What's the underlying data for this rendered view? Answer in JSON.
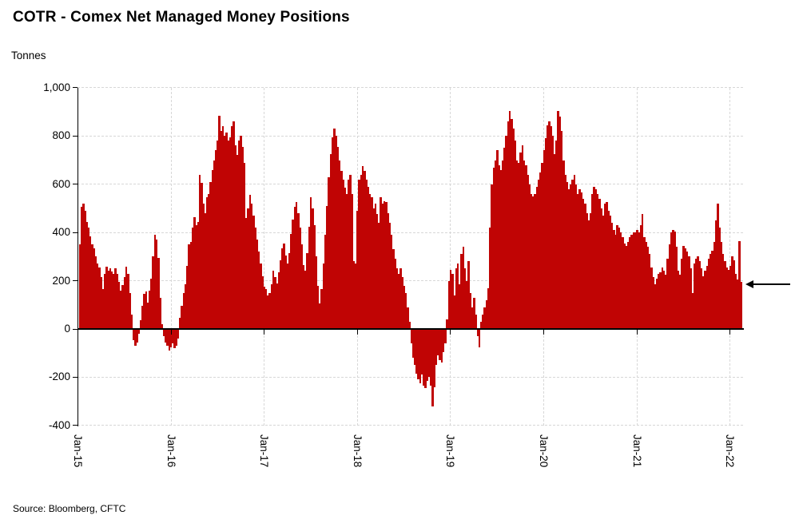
{
  "title": "COTR - Comex Net Managed Money Positions",
  "source": "Source:  Bloomberg,  CFTC",
  "y_axis": {
    "unit_label": "Tonnes",
    "tick_labels": [
      "1,000",
      "800",
      "600",
      "400",
      "200",
      "0",
      "-200",
      "-400"
    ],
    "tick_values": [
      1000,
      800,
      600,
      400,
      200,
      0,
      -200,
      -400
    ]
  },
  "x_axis": {
    "tick_labels": [
      "Jan-15",
      "Jan-16",
      "Jan-17",
      "Jan-18",
      "Jan-19",
      "Jan-20",
      "Jan-21",
      "Jan-22"
    ]
  },
  "annotation": {
    "type": "left-arrow",
    "points_to_value": 195
  },
  "colors": {
    "bar": "#c00404",
    "gridline": "#d7d7d7",
    "axis": "#000000"
  },
  "chart_data": {
    "type": "bar",
    "title": "COTR - Comex Net Managed Money Positions",
    "ylabel": "Tonnes",
    "ylim": [
      -400,
      1000
    ],
    "grid": "dashed, horizontal every 200 and vertical every January; solid line at 0",
    "frequency": "weekly",
    "x_start": "Jan-2015",
    "x_end": "Feb-2022",
    "x_tick_labels": [
      "Jan-15",
      "Jan-16",
      "Jan-17",
      "Jan-18",
      "Jan-19",
      "Jan-20",
      "Jan-21",
      "Jan-22"
    ],
    "values": [
      350,
      505,
      520,
      490,
      445,
      420,
      385,
      350,
      335,
      300,
      270,
      255,
      215,
      165,
      230,
      258,
      240,
      250,
      237,
      228,
      252,
      230,
      196,
      160,
      183,
      215,
      258,
      230,
      150,
      60,
      -45,
      -68,
      -55,
      -20,
      35,
      95,
      145,
      155,
      110,
      160,
      210,
      300,
      390,
      370,
      295,
      130,
      20,
      -30,
      -55,
      -70,
      -90,
      -75,
      -60,
      -80,
      -70,
      -40,
      45,
      95,
      150,
      185,
      260,
      350,
      360,
      420,
      465,
      430,
      445,
      640,
      605,
      520,
      480,
      545,
      560,
      610,
      660,
      700,
      740,
      780,
      885,
      820,
      840,
      800,
      815,
      780,
      795,
      840,
      860,
      760,
      720,
      780,
      800,
      755,
      690,
      460,
      500,
      555,
      520,
      470,
      420,
      370,
      320,
      270,
      220,
      175,
      165,
      140,
      150,
      185,
      240,
      215,
      190,
      235,
      285,
      335,
      355,
      305,
      270,
      315,
      395,
      455,
      505,
      525,
      480,
      420,
      350,
      265,
      240,
      315,
      425,
      545,
      500,
      430,
      300,
      180,
      105,
      165,
      270,
      390,
      510,
      630,
      725,
      795,
      830,
      800,
      755,
      700,
      655,
      620,
      585,
      560,
      620,
      640,
      560,
      280,
      270,
      490,
      620,
      640,
      675,
      655,
      620,
      590,
      560,
      545,
      500,
      520,
      475,
      440,
      545,
      520,
      530,
      525,
      480,
      440,
      390,
      330,
      290,
      250,
      230,
      250,
      215,
      180,
      150,
      90,
      30,
      -60,
      -120,
      -150,
      -185,
      -210,
      -225,
      -190,
      -235,
      -245,
      -215,
      -200,
      -235,
      -320,
      -240,
      -150,
      -110,
      -130,
      -140,
      -95,
      -60,
      40,
      200,
      245,
      230,
      140,
      250,
      270,
      185,
      310,
      340,
      250,
      200,
      280,
      150,
      90,
      130,
      60,
      -30,
      -75,
      30,
      60,
      90,
      120,
      170,
      420,
      600,
      670,
      700,
      743,
      680,
      660,
      700,
      750,
      800,
      860,
      905,
      870,
      830,
      780,
      700,
      690,
      730,
      760,
      700,
      680,
      640,
      600,
      560,
      550,
      560,
      590,
      620,
      650,
      690,
      740,
      790,
      845,
      860,
      840,
      800,
      726,
      780,
      905,
      880,
      820,
      700,
      640,
      610,
      580,
      600,
      620,
      640,
      600,
      560,
      580,
      565,
      540,
      520,
      480,
      450,
      480,
      560,
      590,
      580,
      560,
      540,
      500,
      470,
      520,
      525,
      490,
      470,
      440,
      410,
      390,
      430,
      420,
      400,
      380,
      355,
      345,
      360,
      380,
      390,
      400,
      400,
      410,
      400,
      430,
      475,
      380,
      360,
      340,
      310,
      255,
      215,
      185,
      210,
      230,
      235,
      255,
      240,
      225,
      290,
      350,
      400,
      411,
      405,
      340,
      240,
      225,
      290,
      345,
      335,
      320,
      300,
      250,
      150,
      270,
      290,
      300,
      280,
      250,
      220,
      240,
      260,
      290,
      310,
      325,
      360,
      450,
      521,
      420,
      360,
      310,
      280,
      255,
      245,
      260,
      300,
      285,
      230,
      205,
      365,
      195
    ]
  }
}
